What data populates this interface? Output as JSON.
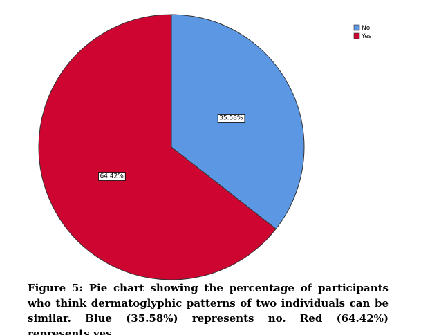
{
  "chart_data": {
    "type": "pie",
    "categories": [
      "No",
      "Yes"
    ],
    "values": [
      35.58,
      64.42
    ],
    "value_labels": [
      "35.58%",
      "64.42%"
    ],
    "colors": [
      "#5b97e2",
      "#cd0530"
    ],
    "legend": "top-right",
    "caption": "Figure 5: Pie chart showing the percentage of participants who think dermatoglyphic patterns of two individuals can be similar. Blue (35.58%) represents no. Red (64.42%) represents yes."
  }
}
